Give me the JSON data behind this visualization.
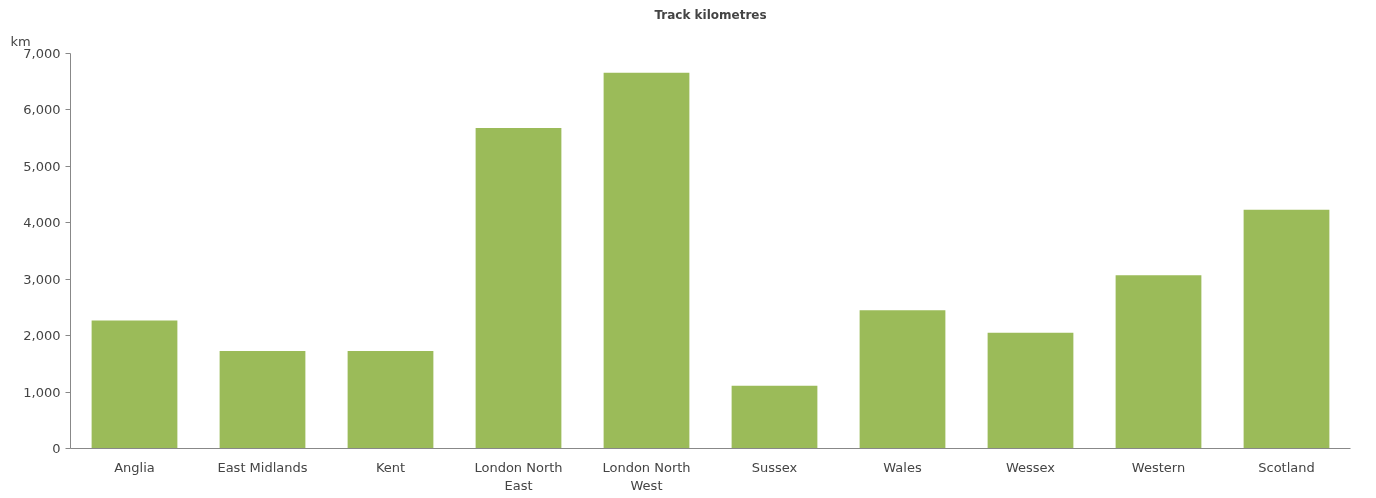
{
  "chart_data": {
    "type": "bar",
    "title": "Track kilometres",
    "ylabel": "km",
    "categories": [
      "Anglia",
      "East Midlands",
      "Kent",
      "London North East",
      "London North West",
      "Sussex",
      "Wales",
      "Wessex",
      "Western",
      "Scotland"
    ],
    "values": [
      2270,
      1730,
      1730,
      5680,
      6660,
      1110,
      2450,
      2050,
      3070,
      4230
    ],
    "color": "#9bbb59",
    "ylim": [
      0,
      7000
    ],
    "yticks": [
      {
        "value": 0,
        "label": "0"
      },
      {
        "value": 1000,
        "label": "1,000"
      },
      {
        "value": 2000,
        "label": "2,000"
      },
      {
        "value": 3000,
        "label": "3,000"
      },
      {
        "value": 4000,
        "label": "4,000"
      },
      {
        "value": 5000,
        "label": "5,000"
      },
      {
        "value": 6000,
        "label": "6,000"
      },
      {
        "value": 7000,
        "label": "7,000"
      }
    ],
    "grid": false
  }
}
